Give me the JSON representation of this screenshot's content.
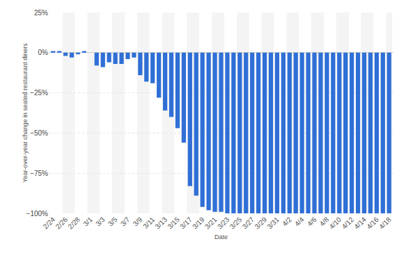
{
  "chart_data": {
    "type": "bar",
    "x_label": "Date",
    "y_label": "Year-over-year change in seated restaurant diners",
    "categories": [
      "2/24",
      null,
      "2/26",
      null,
      "2/28",
      null,
      "3/1",
      null,
      "3/3",
      null,
      "3/5",
      null,
      "3/7",
      null,
      "3/9",
      null,
      "3/11",
      null,
      "3/13",
      null,
      "3/15",
      null,
      "3/17",
      null,
      "3/19",
      null,
      "3/21",
      null,
      "3/23",
      null,
      "3/25",
      null,
      "3/27",
      null,
      "3/29",
      null,
      "3/31",
      null,
      "4/2",
      null,
      "4/4",
      null,
      "4/6",
      null,
      "4/8",
      null,
      "4/10",
      null,
      "4/12",
      null,
      "4/14",
      null,
      "4/16",
      null,
      "4/18"
    ],
    "values": [
      1,
      1,
      -2,
      -3,
      -1,
      1,
      0,
      -8,
      -9,
      -6,
      -7,
      -7,
      -4,
      -3,
      -14,
      -18,
      -19,
      -28,
      -36,
      -40,
      -47,
      -56,
      -83,
      -89,
      -96,
      -98,
      -99,
      -99,
      -100,
      -100,
      -100,
      -100,
      -100,
      -100,
      -100,
      -100,
      -100,
      -100,
      -100,
      -100,
      -100,
      -100,
      -100,
      -100,
      -100,
      -100,
      -100,
      -100,
      -100,
      -100,
      -100,
      -100,
      -100,
      -100,
      -100
    ],
    "color": "#2f6fd6",
    "ylim": [
      -100,
      25
    ],
    "yticks": [
      {
        "value": -100,
        "label": "−100%"
      },
      {
        "value": -75,
        "label": "−75%"
      },
      {
        "value": -50,
        "label": "−50%"
      },
      {
        "value": -25,
        "label": "−25%"
      },
      {
        "value": 0,
        "label": "0%"
      },
      {
        "value": 25,
        "label": "25%"
      }
    ],
    "grid": true
  }
}
